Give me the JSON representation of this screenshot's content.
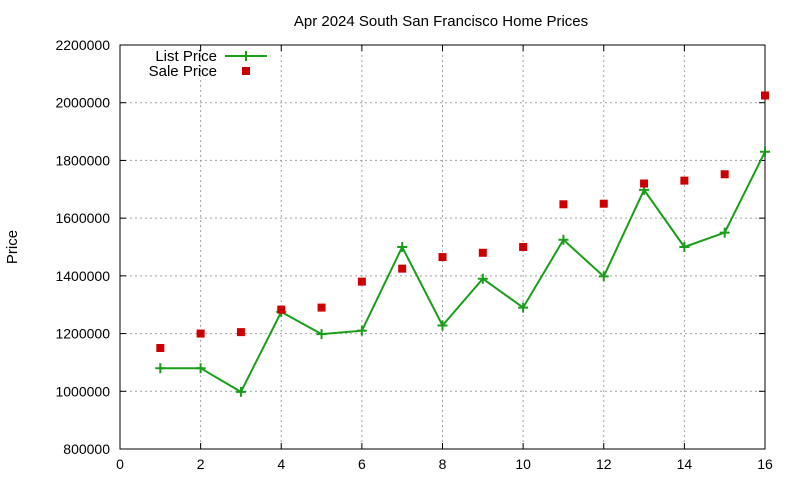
{
  "chart_data": {
    "type": "line",
    "title": "Apr 2024 South San Francisco Home Prices",
    "xlabel": "",
    "ylabel": "Price",
    "xlim": [
      0,
      16
    ],
    "ylim": [
      800000,
      2200000
    ],
    "x_ticks": [
      0,
      2,
      4,
      6,
      8,
      10,
      12,
      14,
      16
    ],
    "y_ticks": [
      800000,
      1000000,
      1200000,
      1400000,
      1600000,
      1800000,
      2000000,
      2200000
    ],
    "grid": true,
    "legend_position": "top-left",
    "x": [
      1,
      2,
      3,
      4,
      5,
      6,
      7,
      8,
      9,
      10,
      11,
      12,
      13,
      14,
      15,
      16
    ],
    "series": [
      {
        "name": "List Price",
        "style": "lines+points",
        "marker": "plus",
        "color": "#1a9e1a",
        "values": [
          1080000,
          1080000,
          998000,
          1275000,
          1198000,
          1210000,
          1500000,
          1228000,
          1390000,
          1290000,
          1525000,
          1398000,
          1698000,
          1500000,
          1550000,
          1830000
        ]
      },
      {
        "name": "Sale Price",
        "style": "points",
        "marker": "square",
        "color": "#cc0000",
        "values": [
          1150000,
          1200000,
          1205000,
          1283000,
          1290000,
          1380000,
          1425000,
          1465000,
          1480000,
          1500000,
          1648000,
          1650000,
          1720000,
          1730000,
          1752000,
          2025000
        ]
      }
    ]
  }
}
